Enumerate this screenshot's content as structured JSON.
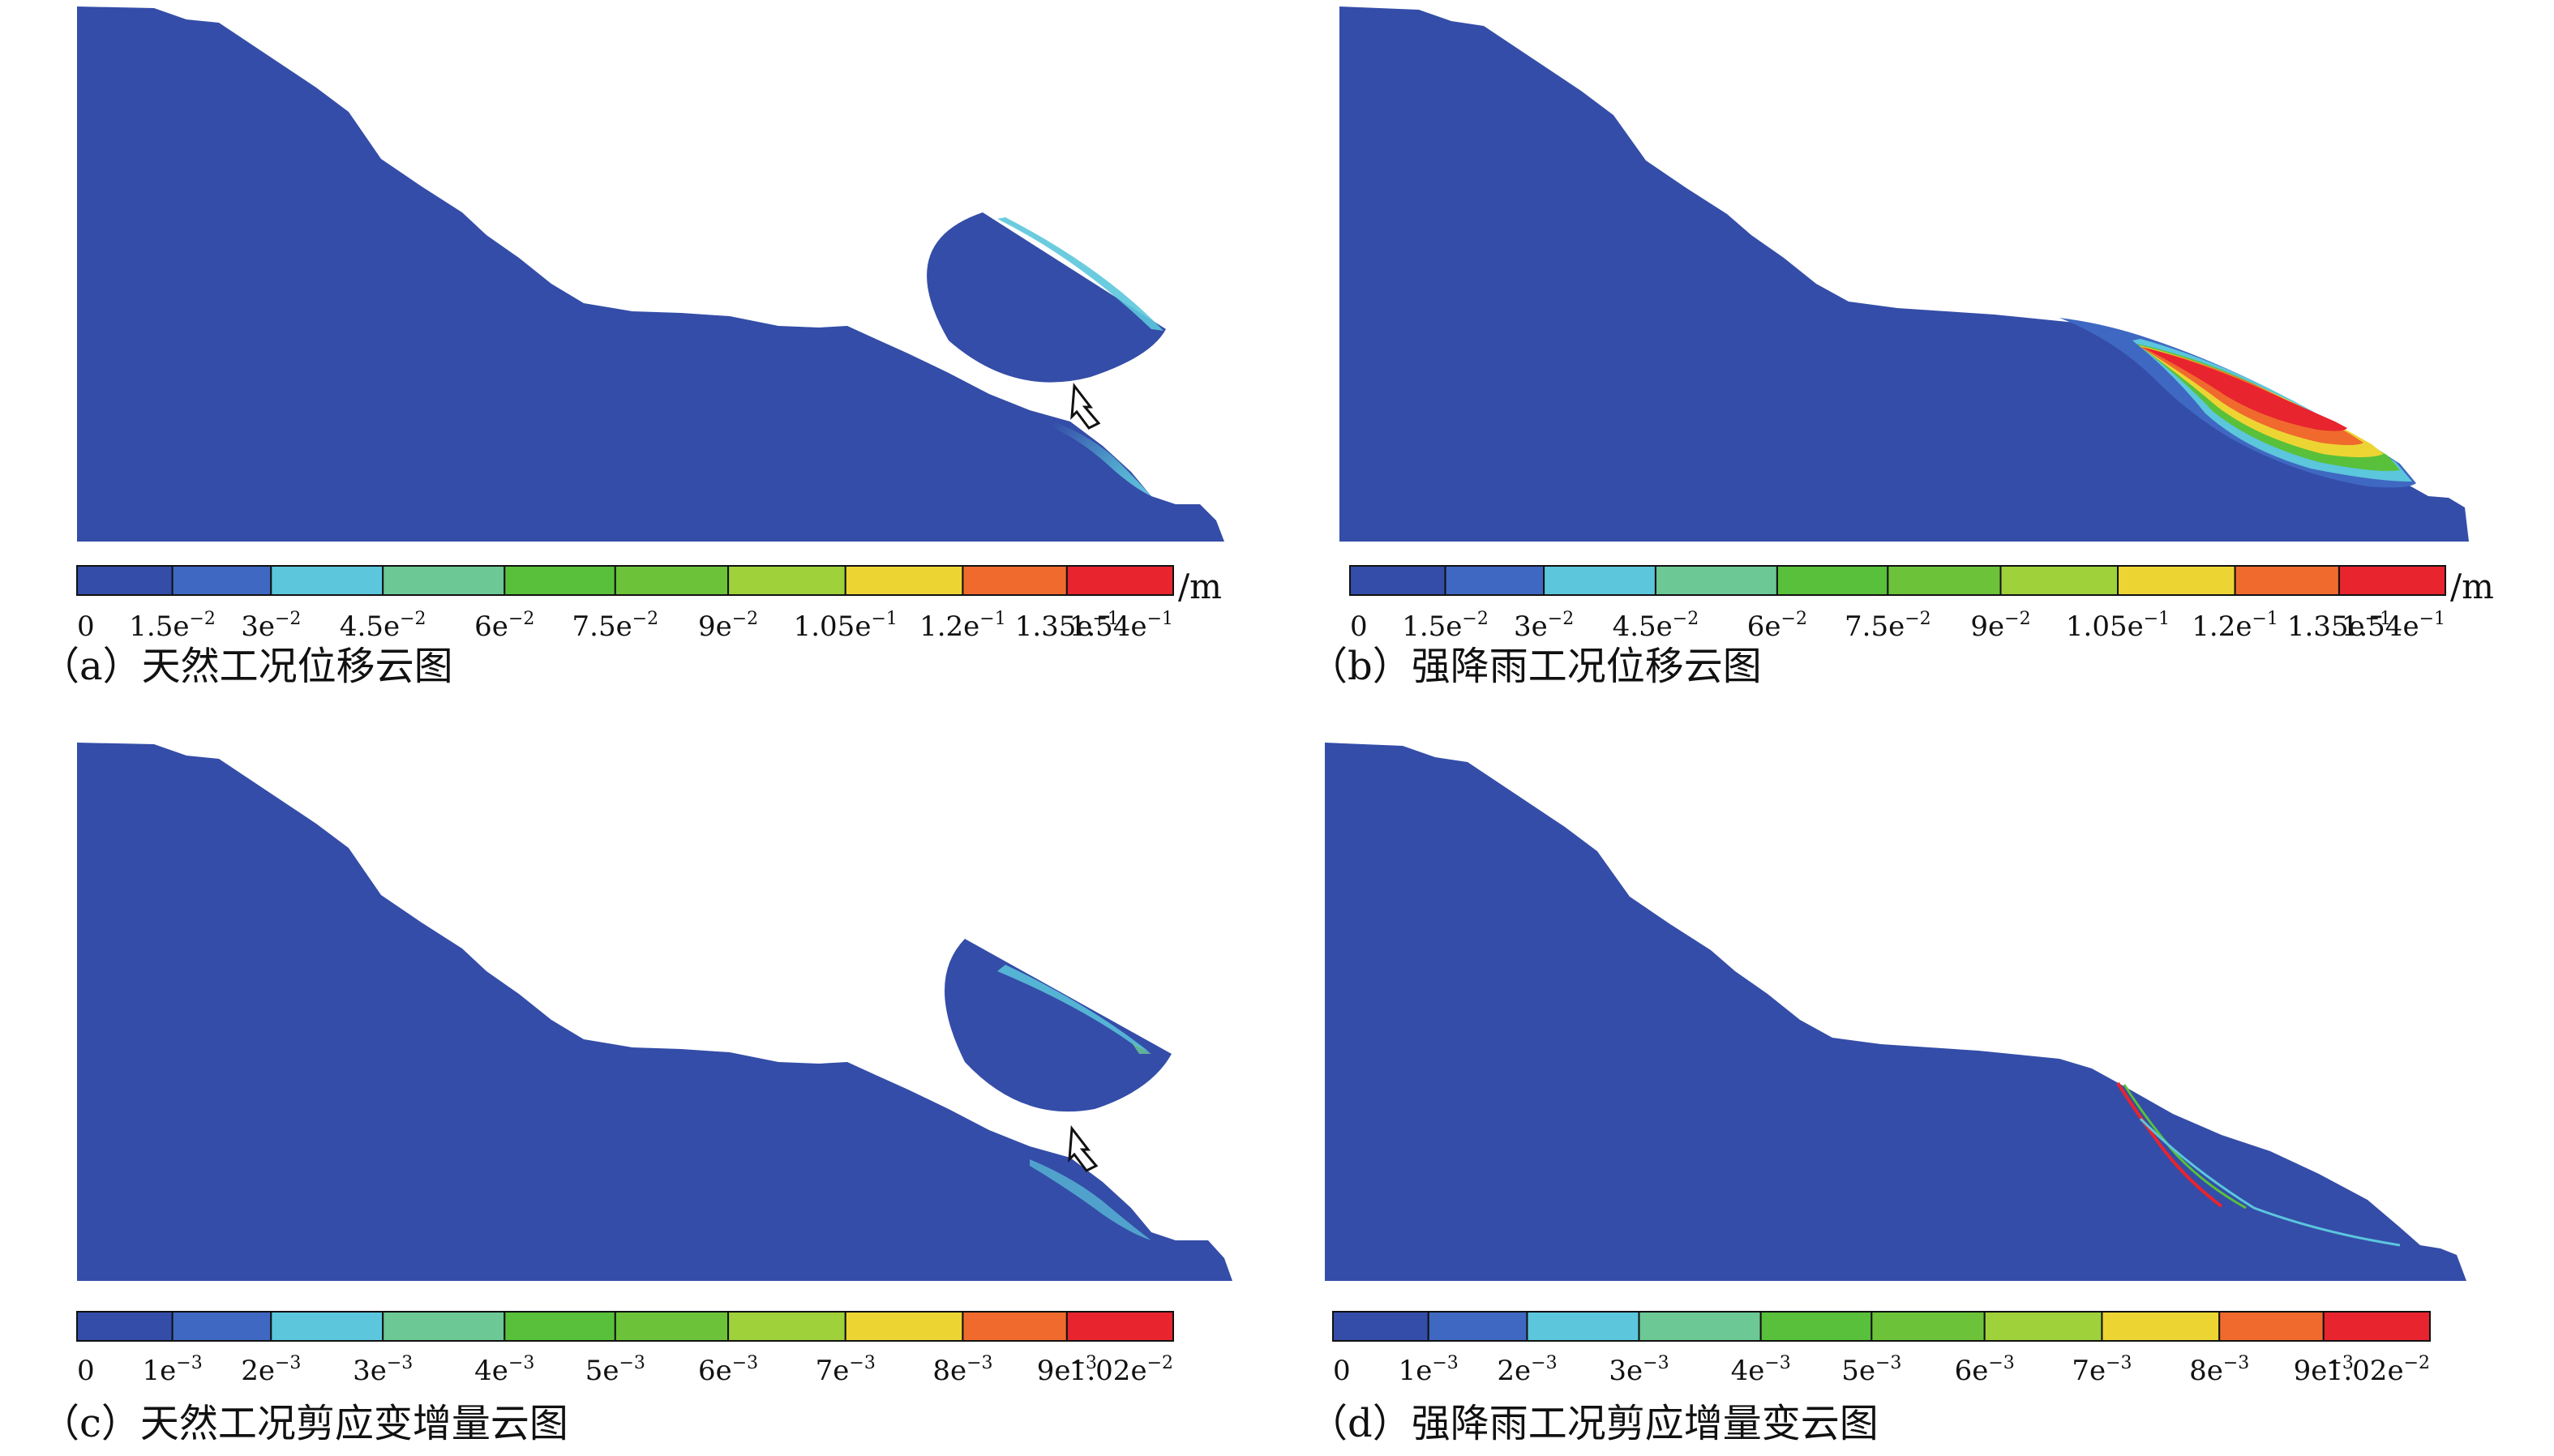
{
  "panels": [
    {
      "id": "a",
      "caption": "（a）天然工况位移云图",
      "unit": "/m",
      "legend_ticks": [
        {
          "base": "0",
          "exp": ""
        },
        {
          "base": "1.5e",
          "exp": "−2"
        },
        {
          "base": "3e",
          "exp": "−2"
        },
        {
          "base": "4.5e",
          "exp": "−2"
        },
        {
          "base": "6e",
          "exp": "−2"
        },
        {
          "base": "7.5e",
          "exp": "−2"
        },
        {
          "base": "9e",
          "exp": "−2"
        },
        {
          "base": "1.05e",
          "exp": "−1"
        },
        {
          "base": "1.2e",
          "exp": "−1"
        },
        {
          "base": "1.35e",
          "exp": "−1"
        },
        {
          "base": "1.54e",
          "exp": "−1"
        }
      ]
    },
    {
      "id": "b",
      "caption": "（b）强降雨工况位移云图",
      "unit": "/m",
      "legend_ticks": [
        {
          "base": "0",
          "exp": ""
        },
        {
          "base": "1.5e",
          "exp": "−2"
        },
        {
          "base": "3e",
          "exp": "−2"
        },
        {
          "base": "4.5e",
          "exp": "−2"
        },
        {
          "base": "6e",
          "exp": "−2"
        },
        {
          "base": "7.5e",
          "exp": "−2"
        },
        {
          "base": "9e",
          "exp": "−2"
        },
        {
          "base": "1.05e",
          "exp": "−1"
        },
        {
          "base": "1.2e",
          "exp": "−1"
        },
        {
          "base": "1.35e",
          "exp": "−1"
        },
        {
          "base": "1.54e",
          "exp": "−1"
        }
      ]
    },
    {
      "id": "c",
      "caption": "（c）天然工况剪应变增量云图",
      "unit": "",
      "legend_ticks": [
        {
          "base": "0",
          "exp": ""
        },
        {
          "base": "1e",
          "exp": "−3"
        },
        {
          "base": "2e",
          "exp": "−3"
        },
        {
          "base": "3e",
          "exp": "−3"
        },
        {
          "base": "4e",
          "exp": "−3"
        },
        {
          "base": "5e",
          "exp": "−3"
        },
        {
          "base": "6e",
          "exp": "−3"
        },
        {
          "base": "7e",
          "exp": "−3"
        },
        {
          "base": "8e",
          "exp": "−3"
        },
        {
          "base": "9e",
          "exp": "−3"
        },
        {
          "base": "1.02e",
          "exp": "−2"
        }
      ]
    },
    {
      "id": "d",
      "caption": "（d）强降雨工况剪应增量变云图",
      "unit": "",
      "legend_ticks": [
        {
          "base": "0",
          "exp": ""
        },
        {
          "base": "1e",
          "exp": "−3"
        },
        {
          "base": "2e",
          "exp": "−3"
        },
        {
          "base": "3e",
          "exp": "−3"
        },
        {
          "base": "4e",
          "exp": "−3"
        },
        {
          "base": "5e",
          "exp": "−3"
        },
        {
          "base": "6e",
          "exp": "−3"
        },
        {
          "base": "7e",
          "exp": "−3"
        },
        {
          "base": "8e",
          "exp": "−3"
        },
        {
          "base": "9e",
          "exp": "−3"
        },
        {
          "base": "1.02e",
          "exp": "−2"
        }
      ]
    }
  ],
  "colors": {
    "base_blue": "#344da8",
    "scale": [
      "#344da8",
      "#3f68c2",
      "#5cc6dc",
      "#6cc895",
      "#58c03a",
      "#6cc33a",
      "#9ed13a",
      "#ecd533",
      "#f06a2e",
      "#e8242e"
    ],
    "highlight_cyan": "#5cc6dc",
    "highlight_green": "#58c03a",
    "highlight_red": "#e8242e",
    "highlight_orange": "#f06a2e",
    "highlight_yellow": "#ecd533"
  },
  "icons": {
    "zoom_arrow": "outline-up-arrow-icon"
  }
}
